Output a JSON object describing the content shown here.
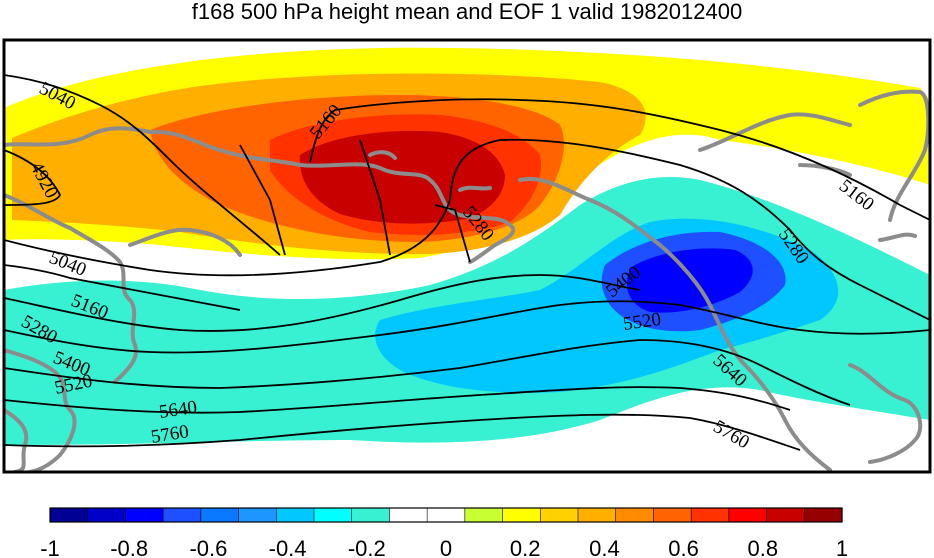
{
  "title": "f168 500 hPa height mean and EOF 1 valid 1982012400",
  "colors": {
    "coast": "#8c8c8c",
    "frame": "#000000",
    "contour": "#000000"
  },
  "colorbar": {
    "bins": [
      "#000096",
      "#0000c8",
      "#0000ff",
      "#1e50ff",
      "#0a78ff",
      "#1e96ff",
      "#00c8ff",
      "#00ffff",
      "#38f0d2",
      "#ffffff",
      "#ffffff",
      "#c8ff32",
      "#ffff00",
      "#ffd200",
      "#ffaf00",
      "#ff8c00",
      "#ff6400",
      "#ff3200",
      "#ff0000",
      "#c80000",
      "#960000"
    ],
    "tick_labels": [
      "-1",
      "-0.8",
      "-0.6",
      "-0.4",
      "-0.2",
      "0",
      "0.2",
      "0.4",
      "0.6",
      "0.8",
      "1"
    ]
  },
  "contour_labels": [
    {
      "text": "5040",
      "name": "contour-label-5040-northwest"
    },
    {
      "text": "4920",
      "name": "contour-label-4920"
    },
    {
      "text": "5160",
      "name": "contour-label-5160-north"
    },
    {
      "text": "5040",
      "name": "contour-label-5040-west"
    },
    {
      "text": "5160",
      "name": "contour-label-5160-west"
    },
    {
      "text": "5280",
      "name": "contour-label-5280-center"
    },
    {
      "text": "5280",
      "name": "contour-label-5280-west"
    },
    {
      "text": "5160",
      "name": "contour-label-5160-east"
    },
    {
      "text": "5280",
      "name": "contour-label-5280-east"
    },
    {
      "text": "5400",
      "name": "contour-label-5400-east"
    },
    {
      "text": "5400",
      "name": "contour-label-5400-west"
    },
    {
      "text": "5520",
      "name": "contour-label-5520-west"
    },
    {
      "text": "5520",
      "name": "contour-label-5520-east"
    },
    {
      "text": "5640",
      "name": "contour-label-5640-west"
    },
    {
      "text": "5640",
      "name": "contour-label-5640-east"
    },
    {
      "text": "5760",
      "name": "contour-label-5760-west"
    },
    {
      "text": "5760",
      "name": "contour-label-5760-east"
    }
  ]
}
